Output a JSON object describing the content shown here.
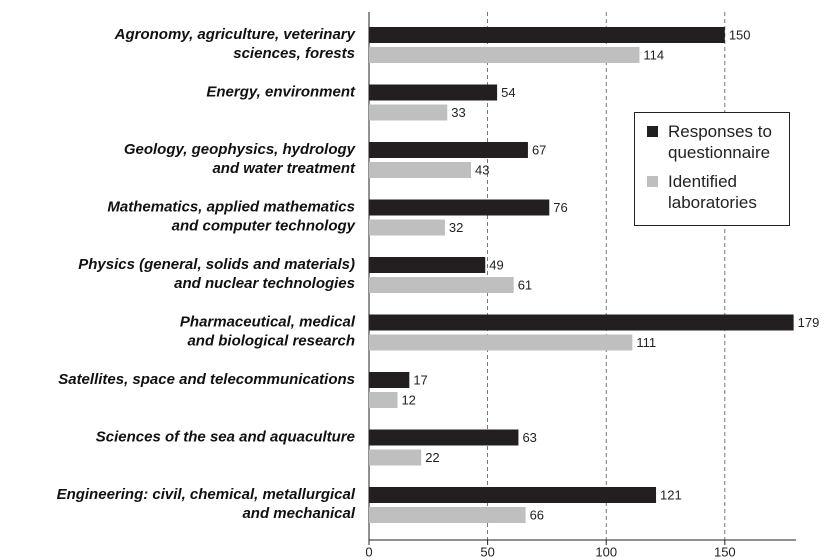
{
  "chart_data": {
    "type": "bar",
    "orientation": "horizontal",
    "categories": [
      [
        "Agronomy, agriculture, veterinary",
        "sciences, forests"
      ],
      [
        "Energy, environment"
      ],
      [
        "Geology, geophysics, hydrology",
        "and water treatment"
      ],
      [
        "Mathematics, applied mathematics",
        "and computer technology"
      ],
      [
        "Physics (general, solids and materials)",
        "and nuclear technologies"
      ],
      [
        "Pharmaceutical, medical",
        "and biological research"
      ],
      [
        "Satellites, space and telecommunications"
      ],
      [
        "Sciences of the sea and aquaculture"
      ],
      [
        "Engineering: civil, chemical, metallurgical",
        "and mechanical"
      ]
    ],
    "series": [
      {
        "name": "Responses to questionnaire",
        "color": "#231f20",
        "values": [
          150,
          54,
          67,
          76,
          49,
          179,
          17,
          63,
          121
        ]
      },
      {
        "name": "Identified laboratories",
        "color": "#bfbfbf",
        "values": [
          114,
          33,
          43,
          32,
          61,
          111,
          12,
          22,
          66
        ]
      }
    ],
    "xlim": [
      0,
      180
    ],
    "xticks": [
      0,
      50,
      100,
      150
    ],
    "grid": true,
    "legend": "right"
  }
}
